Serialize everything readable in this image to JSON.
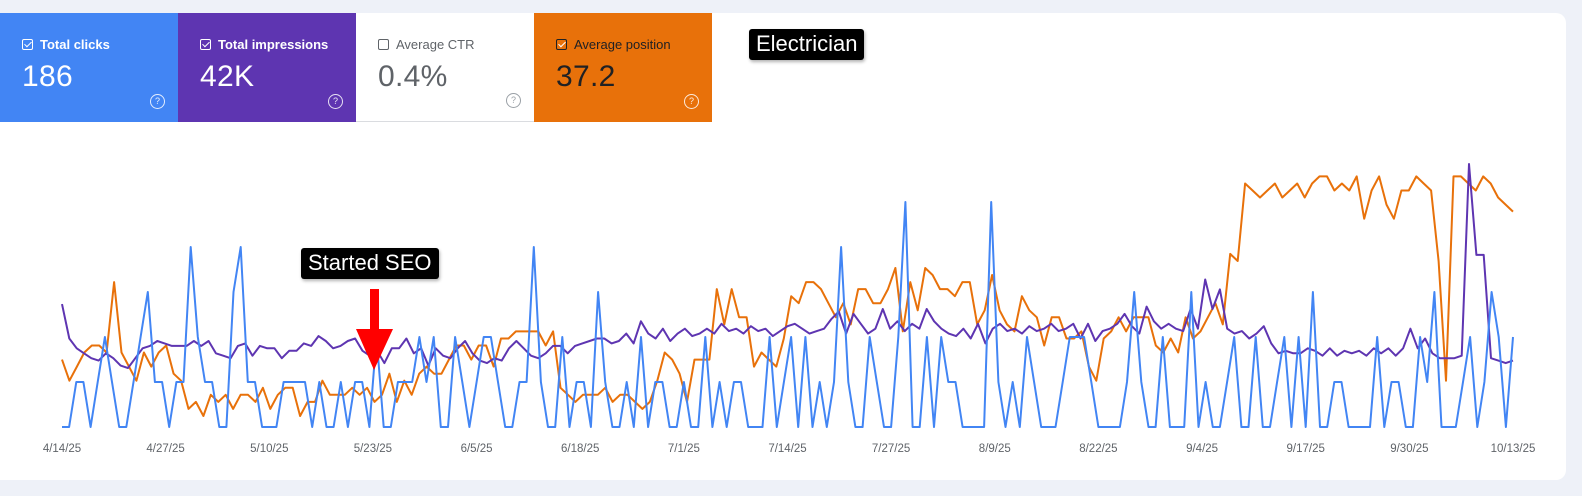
{
  "metrics": [
    {
      "label": "Total clicks",
      "value": "186",
      "checked": true,
      "color": "#4285f4"
    },
    {
      "label": "Total impressions",
      "value": "42K",
      "checked": true,
      "color": "#5e35b1"
    },
    {
      "label": "Average CTR",
      "value": "0.4%",
      "checked": false,
      "color": "#ffffff"
    },
    {
      "label": "Average position",
      "value": "37.2",
      "checked": true,
      "color": "#e8710a"
    }
  ],
  "annotations": {
    "keyword": "Electrician",
    "started": "Started SEO"
  },
  "chart_data": {
    "type": "line",
    "x_tick_labels": [
      "4/14/25",
      "4/27/25",
      "5/10/25",
      "5/23/25",
      "6/5/25",
      "6/18/25",
      "7/1/25",
      "7/14/25",
      "7/27/25",
      "8/9/25",
      "8/22/25",
      "9/4/25",
      "9/17/25",
      "9/30/25",
      "10/13/25"
    ],
    "series": [
      {
        "name": "Total clicks",
        "color": "#4285f4",
        "values": [
          0,
          0,
          1,
          1,
          0,
          1,
          2,
          1,
          0,
          0,
          1,
          2,
          3,
          1,
          1,
          0,
          1,
          1,
          4,
          2,
          1,
          1,
          0,
          0,
          3,
          4,
          1,
          1,
          0,
          0,
          0,
          1,
          1,
          1,
          1,
          0,
          1,
          0,
          0,
          1,
          0,
          1,
          1,
          0,
          2,
          0,
          0,
          1,
          1,
          1,
          2,
          1,
          2,
          0,
          0,
          2,
          1,
          0,
          1,
          2,
          2,
          1,
          0,
          0,
          1,
          1,
          4,
          1,
          0,
          0,
          2,
          0,
          1,
          1,
          0,
          3,
          1,
          0,
          0,
          1,
          0,
          2,
          0,
          1,
          1,
          0,
          0,
          1,
          0,
          0,
          2,
          0,
          1,
          0,
          1,
          1,
          0,
          0,
          0,
          2,
          0,
          1,
          2,
          0,
          2,
          0,
          1,
          0,
          1,
          4,
          1,
          0,
          0,
          2,
          1,
          0,
          0,
          2,
          5,
          0,
          0,
          2,
          0,
          2,
          1,
          1,
          0,
          0,
          0,
          0,
          5,
          1,
          0,
          1,
          0,
          2,
          1,
          0,
          0,
          0,
          1,
          2,
          2,
          2,
          1,
          0,
          0,
          0,
          0,
          1,
          3,
          1,
          0,
          0,
          2,
          0,
          0,
          0,
          3,
          0,
          1,
          0,
          0,
          1,
          2,
          0,
          0,
          2,
          0,
          0,
          1,
          2,
          0,
          2,
          0,
          3,
          0,
          0,
          1,
          1,
          0,
          0,
          0,
          0,
          2,
          0,
          1,
          1,
          0,
          0,
          2,
          1,
          3,
          0,
          0,
          0,
          1,
          2,
          0,
          1,
          3,
          2,
          0,
          2
        ]
      },
      {
        "name": "Total impressions",
        "color": "#5e35b1",
        "values": [
          250,
          180,
          160,
          150,
          140,
          135,
          150,
          140,
          125,
          120,
          140,
          160,
          165,
          175,
          170,
          165,
          165,
          165,
          175,
          165,
          175,
          150,
          145,
          140,
          165,
          170,
          145,
          165,
          160,
          160,
          140,
          155,
          155,
          170,
          165,
          185,
          175,
          160,
          165,
          175,
          180,
          155,
          145,
          155,
          130,
          160,
          160,
          180,
          150,
          160,
          125,
          160,
          145,
          140,
          160,
          175,
          150,
          135,
          130,
          140,
          135,
          160,
          175,
          160,
          145,
          140,
          150,
          165,
          165,
          150,
          165,
          170,
          175,
          180,
          180,
          170,
          175,
          190,
          170,
          215,
          190,
          180,
          200,
          175,
          190,
          200,
          185,
          190,
          200,
          190,
          210,
          195,
          200,
          190,
          205,
          195,
          200,
          185,
          195,
          205,
          210,
          200,
          190,
          195,
          200,
          220,
          235,
          190,
          230,
          210,
          190,
          200,
          240,
          200,
          215,
          195,
          210,
          200,
          240,
          215,
          200,
          190,
          185,
          200,
          180,
          210,
          170,
          200,
          210,
          195,
          200,
          190,
          205,
          195,
          200,
          210,
          195,
          200,
          210,
          180,
          210,
          175,
          195,
          200,
          210,
          230,
          205,
          190,
          245,
          215,
          200,
          210,
          200,
          195,
          240,
          200,
          300,
          240,
          280,
          200,
          190,
          195,
          180,
          190,
          205,
          170,
          150,
          155,
          150,
          150,
          160,
          155,
          145,
          160,
          145,
          155,
          150,
          155,
          145,
          160,
          150,
          160,
          145,
          160,
          200,
          160,
          180,
          150,
          140,
          140,
          140,
          145,
          535,
          350,
          350,
          140,
          135,
          130,
          135
        ]
      },
      {
        "name": "Average position",
        "color": "#e8710a",
        "values": [
          55,
          58,
          56,
          54,
          53,
          53,
          54,
          44,
          54,
          56,
          58,
          54,
          56,
          54,
          53,
          57,
          58,
          62,
          61,
          63,
          60,
          61,
          60,
          62,
          60,
          60,
          61,
          59,
          62,
          60,
          59,
          59,
          63,
          61,
          61,
          58,
          60,
          60,
          60,
          59,
          60,
          59,
          61,
          60,
          57,
          61,
          58,
          60,
          57,
          56,
          57,
          57,
          55,
          53,
          53,
          55,
          53,
          53,
          56,
          52,
          52,
          51,
          51,
          51,
          51,
          53,
          51,
          59,
          60,
          61,
          60,
          60,
          60,
          59,
          61,
          60,
          60,
          61,
          62,
          61,
          58,
          54,
          55,
          57,
          61,
          55,
          55,
          55,
          45,
          50,
          45,
          49,
          49,
          56,
          54,
          55,
          56,
          52,
          46,
          47,
          44,
          44,
          45,
          47,
          49,
          47,
          50,
          45,
          45,
          47,
          47,
          45,
          42,
          51,
          44,
          48,
          42,
          43,
          45,
          45,
          46,
          44,
          44,
          50,
          48,
          43,
          48,
          50,
          51,
          46,
          48,
          49,
          53,
          49,
          49,
          52,
          52,
          51,
          56,
          58,
          52,
          51,
          49,
          51,
          49,
          49,
          49,
          53,
          54,
          52,
          54,
          49,
          52,
          51,
          49,
          47,
          50,
          40,
          41,
          30,
          31,
          32,
          31,
          30,
          32,
          31,
          30,
          32,
          30,
          29,
          29,
          31,
          30,
          31,
          29,
          35,
          31,
          29,
          33,
          35,
          31,
          31,
          29,
          30,
          31,
          41,
          58,
          29,
          29,
          30,
          31,
          29,
          30,
          32,
          33,
          34
        ]
      }
    ],
    "grid": false,
    "legend": "none"
  }
}
